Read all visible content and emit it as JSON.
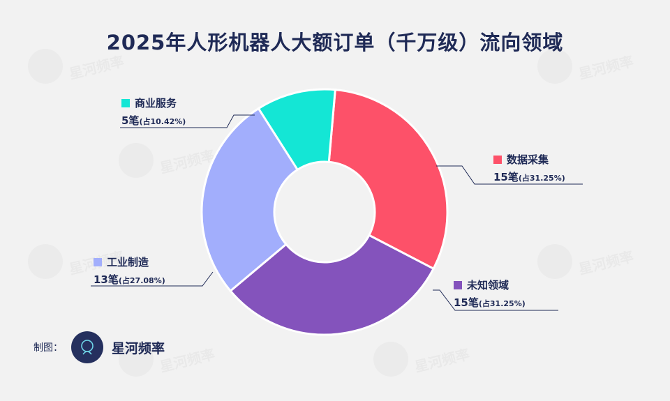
{
  "title": "2025年人形机器人大额订单（千万级）流向领域",
  "watermark": "星河频率",
  "credit": {
    "label": "制图：",
    "brand": "星河频率"
  },
  "chart_data": {
    "type": "pie",
    "donut": true,
    "title": "2025年人形机器人大额订单（千万级）流向领域",
    "unit": "笔",
    "slices": [
      {
        "label": "数据采集",
        "value": 15,
        "percent": "31.25%",
        "count_text": "15笔",
        "pct_text": "(占31.25%)",
        "color": "#fd5169"
      },
      {
        "label": "未知领域",
        "value": 15,
        "percent": "31.25%",
        "count_text": "15笔",
        "pct_text": "(占31.25%)",
        "color": "#8453bc"
      },
      {
        "label": "工业制造",
        "value": 13,
        "percent": "27.08%",
        "count_text": "13笔",
        "pct_text": "(占27.08%)",
        "color": "#a2aefc"
      },
      {
        "label": "商业服务",
        "value": 5,
        "percent": "10.42%",
        "count_text": "5笔",
        "pct_text": "(占10.42%)",
        "color": "#14e6d5"
      }
    ],
    "start_angle_deg": 5
  }
}
